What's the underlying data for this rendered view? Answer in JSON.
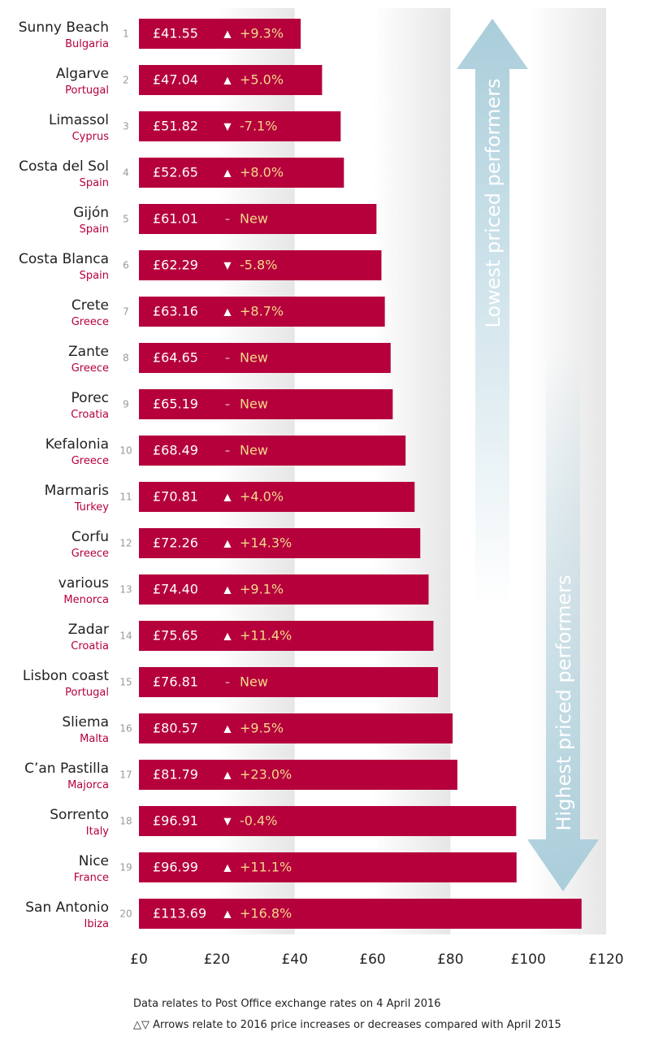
{
  "chart_data": {
    "type": "bar",
    "orientation": "horizontal",
    "categories": [
      "Sunny Beach",
      "Algarve",
      "Limassol",
      "Costa del Sol",
      "Gijón",
      "Costa Blanca",
      "Crete",
      "Zante",
      "Porec",
      "Kefalonia",
      "Marmaris",
      "Corfu",
      "various",
      "Zadar",
      "Lisbon coast",
      "Sliema",
      "C’an Pastilla",
      "Sorrento",
      "Nice",
      "San Antonio"
    ],
    "subcategories": [
      "Bulgaria",
      "Portugal",
      "Cyprus",
      "Spain",
      "Spain",
      "Spain",
      "Greece",
      "Greece",
      "Croatia",
      "Greece",
      "Turkey",
      "Greece",
      "Menorca",
      "Croatia",
      "Portugal",
      "Malta",
      "Majorca",
      "Italy",
      "France",
      "Ibiza"
    ],
    "ranks": [
      "1",
      "2",
      "3",
      "4",
      "5",
      "6",
      "7",
      "8",
      "9",
      "10",
      "11",
      "12",
      "13",
      "14",
      "15",
      "16",
      "17",
      "18",
      "19",
      "20"
    ],
    "values": [
      41.55,
      47.04,
      51.82,
      52.65,
      61.01,
      62.29,
      63.16,
      64.65,
      65.19,
      68.49,
      70.81,
      72.26,
      74.4,
      75.65,
      76.81,
      80.57,
      81.79,
      96.91,
      96.99,
      113.69
    ],
    "value_labels": [
      "£41.55",
      "£47.04",
      "£51.82",
      "£52.65",
      "£61.01",
      "£62.29",
      "£63.16",
      "£64.65",
      "£65.19",
      "£68.49",
      "£70.81",
      "£72.26",
      "£74.40",
      "£75.65",
      "£76.81",
      "£80.57",
      "£81.79",
      "£96.91",
      "£96.99",
      "£113.69"
    ],
    "changes": [
      "+9.3%",
      "+5.0%",
      "-7.1%",
      "+8.0%",
      "New",
      "-5.8%",
      "+8.7%",
      "New",
      "New",
      "New",
      "+4.0%",
      "+14.3%",
      "+9.1%",
      "+11.4%",
      "New",
      "+9.5%",
      "+23.0%",
      "-0.4%",
      "+11.1%",
      "+16.8%"
    ],
    "change_symbols": [
      "▲",
      "▲",
      "▼",
      "▲",
      "–",
      "▼",
      "▲",
      "–",
      "–",
      "–",
      "▲",
      "▲",
      "▲",
      "▲",
      "–",
      "▲",
      "▲",
      "▼",
      "▲",
      "▲"
    ],
    "xlim": [
      0,
      120
    ],
    "xticks": [
      0,
      20,
      40,
      60,
      80,
      100,
      120
    ],
    "xtick_labels": [
      "£0",
      "£20",
      "£40",
      "£60",
      "£80",
      "£100",
      "£120"
    ],
    "title": "",
    "xlabel": "",
    "ylabel": "",
    "grid": "alternating vertical bands",
    "annotations": [
      "Lowest priced performers",
      "Highest priced performers"
    ],
    "colors": {
      "bar": "#b5003c",
      "subcategory_text": "#b5003c",
      "change_text": "#f5d78a",
      "arrow": "#abcfdc",
      "rank_text": "#999999",
      "band": "#ececec"
    }
  },
  "footnotes": [
    "Data relates to Post Office exchange rates on 4 April 2016",
    "△▽  Arrows relate to 2016 price increases or decreases compared with April 2015"
  ]
}
